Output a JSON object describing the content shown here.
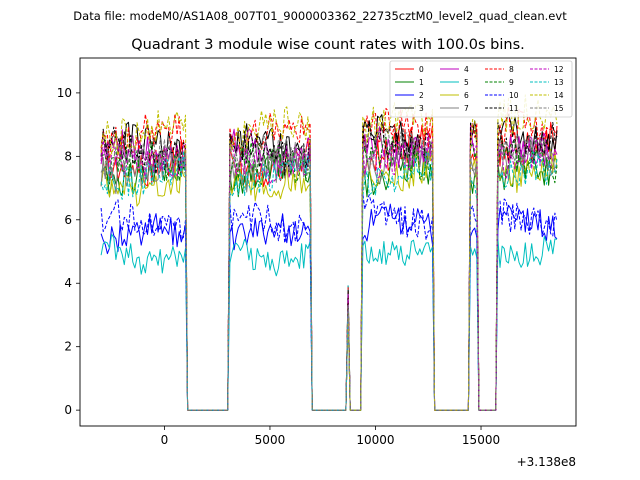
{
  "chart_data": {
    "type": "line",
    "suptitle": "Data file: modeM0/AS1A08_007T01_9000003362_22735cztM0_level2_quad_clean.evt",
    "title": "Quadrant 3 module wise count rates with 100.0s bins.",
    "xlabel": "",
    "ylabel": "",
    "x_offset_label": "+3.138e8",
    "xlim": [
      -4000,
      19500
    ],
    "ylim": [
      -0.5,
      11.1
    ],
    "xticks": [
      0,
      5000,
      10000,
      15000
    ],
    "yticks": [
      0,
      2,
      4,
      6,
      8,
      10
    ],
    "bin_seconds": 100,
    "active_intervals": [
      [
        -3000,
        1000
      ],
      [
        3100,
        6900
      ],
      [
        9400,
        12700
      ],
      [
        14500,
        14800
      ],
      [
        15800,
        18600
      ]
    ],
    "spike": {
      "x": 8700,
      "peak": 4.0
    },
    "series": [
      {
        "name": "0",
        "color": "#ff0000",
        "dash": "solid",
        "level": 7.8,
        "level_after": 8.3
      },
      {
        "name": "1",
        "color": "#008000",
        "dash": "solid",
        "level": 7.5,
        "level_after": 7.4
      },
      {
        "name": "2",
        "color": "#0000ff",
        "dash": "solid",
        "level": 5.5,
        "level_after": 5.8
      },
      {
        "name": "3",
        "color": "#000000",
        "dash": "solid",
        "level": 8.3,
        "level_after": 8.6
      },
      {
        "name": "4",
        "color": "#bf00bf",
        "dash": "solid",
        "level": 8.1,
        "level_after": 8.3
      },
      {
        "name": "5",
        "color": "#00bfbf",
        "dash": "solid",
        "level": 4.9,
        "level_after": 5.1
      },
      {
        "name": "6",
        "color": "#bfbf00",
        "dash": "solid",
        "level": 7.2,
        "level_after": 7.5
      },
      {
        "name": "7",
        "color": "#808080",
        "dash": "solid",
        "level": 7.6,
        "level_after": 7.8
      },
      {
        "name": "8",
        "color": "#ff0000",
        "dash": "dashed",
        "level": 8.6,
        "level_after": 8.8
      },
      {
        "name": "9",
        "color": "#008000",
        "dash": "dashed",
        "level": 7.7,
        "level_after": 7.9
      },
      {
        "name": "10",
        "color": "#0000ff",
        "dash": "dashed",
        "level": 5.9,
        "level_after": 6.1
      },
      {
        "name": "11",
        "color": "#000000",
        "dash": "dashed",
        "level": 8.2,
        "level_after": 8.6
      },
      {
        "name": "12",
        "color": "#bf00bf",
        "dash": "dashed",
        "level": 7.9,
        "level_after": 8.1
      },
      {
        "name": "13",
        "color": "#00bfbf",
        "dash": "dashed",
        "level": 7.4,
        "level_after": 7.4
      },
      {
        "name": "14",
        "color": "#bfbf00",
        "dash": "dashed",
        "level": 8.8,
        "level_after": 9.1
      },
      {
        "name": "15",
        "color": "#808080",
        "dash": "dashed",
        "level": 7.9,
        "level_after": 8.1
      }
    ]
  }
}
